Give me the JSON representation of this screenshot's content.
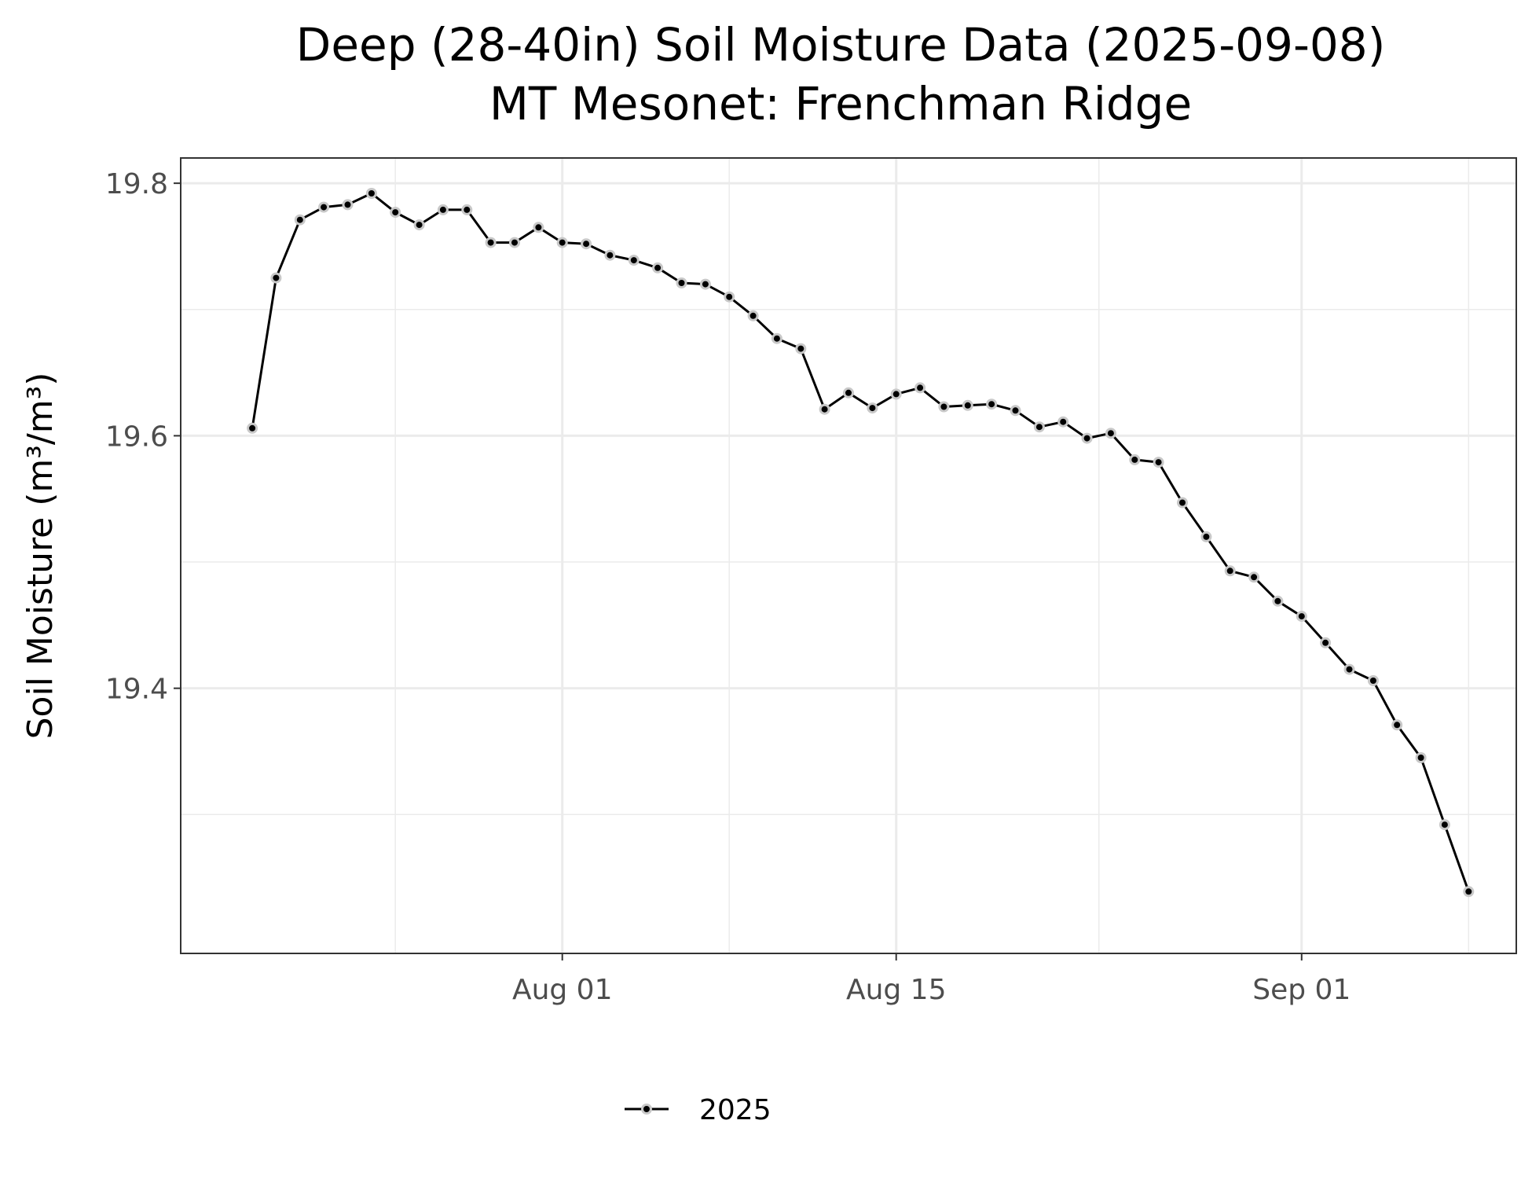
{
  "chart_data": {
    "type": "line",
    "title": "Deep (28-40in) Soil Moisture Data (2025-09-08)",
    "subtitle": "MT Mesonet: Frenchman Ridge",
    "xlabel": "",
    "ylabel": "Soil Moisture (m³/m³)",
    "x_ticks": [
      "Aug 01",
      "Aug 15",
      "Sep 01"
    ],
    "x_tick_dates": [
      "2025-08-01",
      "2025-08-15",
      "2025-09-01"
    ],
    "y_ticks": [
      19.4,
      19.6,
      19.8
    ],
    "xlim": [
      "2025-07-16",
      "2025-09-10"
    ],
    "ylim": [
      19.19,
      19.82
    ],
    "grid": true,
    "legend_position": "bottom",
    "colors": {
      "line": "#000000",
      "point_fill": "#000000",
      "point_halo": "#c8c8c8",
      "grid": "#ebebeb",
      "panel_border": "#333333"
    },
    "series": [
      {
        "name": "2025",
        "x": [
          "2025-07-19",
          "2025-07-20",
          "2025-07-21",
          "2025-07-22",
          "2025-07-23",
          "2025-07-24",
          "2025-07-25",
          "2025-07-26",
          "2025-07-27",
          "2025-07-28",
          "2025-07-29",
          "2025-07-30",
          "2025-07-31",
          "2025-08-01",
          "2025-08-02",
          "2025-08-03",
          "2025-08-04",
          "2025-08-05",
          "2025-08-06",
          "2025-08-07",
          "2025-08-08",
          "2025-08-09",
          "2025-08-10",
          "2025-08-11",
          "2025-08-12",
          "2025-08-13",
          "2025-08-14",
          "2025-08-15",
          "2025-08-16",
          "2025-08-17",
          "2025-08-18",
          "2025-08-19",
          "2025-08-20",
          "2025-08-21",
          "2025-08-22",
          "2025-08-23",
          "2025-08-24",
          "2025-08-25",
          "2025-08-26",
          "2025-08-27",
          "2025-08-28",
          "2025-08-29",
          "2025-08-30",
          "2025-08-31",
          "2025-09-01",
          "2025-09-02",
          "2025-09-03",
          "2025-09-04",
          "2025-09-05",
          "2025-09-06",
          "2025-09-07",
          "2025-09-08"
        ],
        "values": [
          19.606,
          19.725,
          19.771,
          19.781,
          19.783,
          19.792,
          19.777,
          19.767,
          19.779,
          19.779,
          19.753,
          19.753,
          19.765,
          19.753,
          19.752,
          19.743,
          19.739,
          19.733,
          19.721,
          19.72,
          19.71,
          19.695,
          19.677,
          19.669,
          19.621,
          19.634,
          19.622,
          19.633,
          19.638,
          19.623,
          19.624,
          19.625,
          19.62,
          19.607,
          19.611,
          19.598,
          19.602,
          19.581,
          19.579,
          19.547,
          19.52,
          19.493,
          19.488,
          19.469,
          19.457,
          19.436,
          19.415,
          19.406,
          19.371,
          19.345,
          19.292,
          19.239
        ]
      }
    ]
  }
}
